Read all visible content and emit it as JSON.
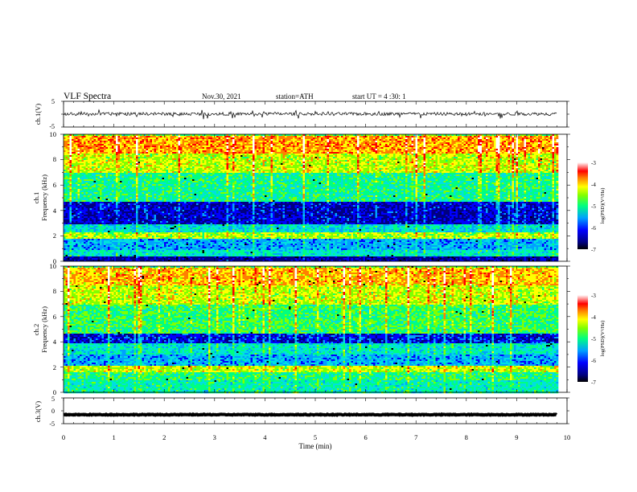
{
  "header": {
    "title": "VLF  Spectra",
    "date": "Nov.30, 2021",
    "station": "station=ATH",
    "start": "start  UT  =   4  :30: 1"
  },
  "colors": {
    "ramp": [
      "#000080",
      "#0000ff",
      "#00a0ff",
      "#00e0e0",
      "#00ff80",
      "#80ff00",
      "#ffff00",
      "#ff8000",
      "#ff0000",
      "#ffffff"
    ]
  },
  "chart_data": [
    {
      "type": "line",
      "panel": "ch1-waveform",
      "ylabel": "ch.1(V)",
      "ylim": [
        -5,
        5
      ],
      "y_ticks": [
        "5",
        "-5"
      ],
      "baseline_v": 0.1,
      "noise_amplitude_v": 0.6
    },
    {
      "type": "heatmap",
      "panel": "ch1-spectrogram",
      "ylabel_channel": "ch.1",
      "ylabel": "Frequency (kHz)",
      "ylim": [
        0,
        10
      ],
      "y_ticks": [
        "0",
        "2",
        "4",
        "6",
        "8",
        "10"
      ],
      "colorbar": {
        "label": "log(PSD)(V²/Hz)",
        "range": [
          -7,
          -3
        ],
        "ticks": [
          "-3",
          "-4",
          "-5",
          "-6",
          "-7"
        ]
      },
      "bands_khz": [
        {
          "from": 0,
          "to": 0.5,
          "log_psd": -6.8
        },
        {
          "from": 0.5,
          "to": 1.0,
          "log_psd": -5.5
        },
        {
          "from": 1.0,
          "to": 1.8,
          "log_psd": -5.9
        },
        {
          "from": 1.8,
          "to": 2.4,
          "log_psd": -4.7
        },
        {
          "from": 2.4,
          "to": 3.0,
          "log_psd": -5.6
        },
        {
          "from": 3.0,
          "to": 4.8,
          "log_psd": -6.6
        },
        {
          "from": 4.8,
          "to": 7.0,
          "log_psd": -5.3
        },
        {
          "from": 7.0,
          "to": 8.5,
          "log_psd": -4.6
        },
        {
          "from": 8.5,
          "to": 10.0,
          "log_psd": -4.1
        }
      ]
    },
    {
      "type": "heatmap",
      "panel": "ch2-spectrogram",
      "ylabel_channel": "ch.2",
      "ylabel": "Frequency (kHz)",
      "ylim": [
        0,
        10
      ],
      "y_ticks": [
        "0",
        "2",
        "4",
        "6",
        "8",
        "10"
      ],
      "colorbar": {
        "label": "log(PSD)(V²/Hz)",
        "range": [
          -7,
          -3
        ],
        "ticks": [
          "-3",
          "-4",
          "-5",
          "-6",
          "-7"
        ]
      },
      "bands_khz": [
        {
          "from": 0,
          "to": 1.0,
          "log_psd": -5.4
        },
        {
          "from": 1.0,
          "to": 1.6,
          "log_psd": -5.2
        },
        {
          "from": 1.6,
          "to": 2.2,
          "log_psd": -4.6
        },
        {
          "from": 2.2,
          "to": 3.0,
          "log_psd": -5.9
        },
        {
          "from": 3.0,
          "to": 4.0,
          "log_psd": -5.5
        },
        {
          "from": 4.0,
          "to": 4.7,
          "log_psd": -6.5
        },
        {
          "from": 4.7,
          "to": 7.0,
          "log_psd": -5.1
        },
        {
          "from": 7.0,
          "to": 8.5,
          "log_psd": -4.6
        },
        {
          "from": 8.5,
          "to": 10.0,
          "log_psd": -4.2
        }
      ]
    },
    {
      "type": "line",
      "panel": "ch3-waveform",
      "ylabel": "ch.3(V)",
      "ylim": [
        -5,
        5
      ],
      "y_ticks": [
        "5",
        "0",
        "-5"
      ],
      "baseline_v": -1.5,
      "noise_amplitude_v": 0.15
    }
  ],
  "x_axis": {
    "xlabel": "Time  (min)",
    "xlim": [
      0,
      10
    ],
    "ticks": [
      "0",
      "1",
      "2",
      "3",
      "4",
      "5",
      "6",
      "7",
      "8",
      "9",
      "10"
    ],
    "data_end_min": 9.8
  }
}
